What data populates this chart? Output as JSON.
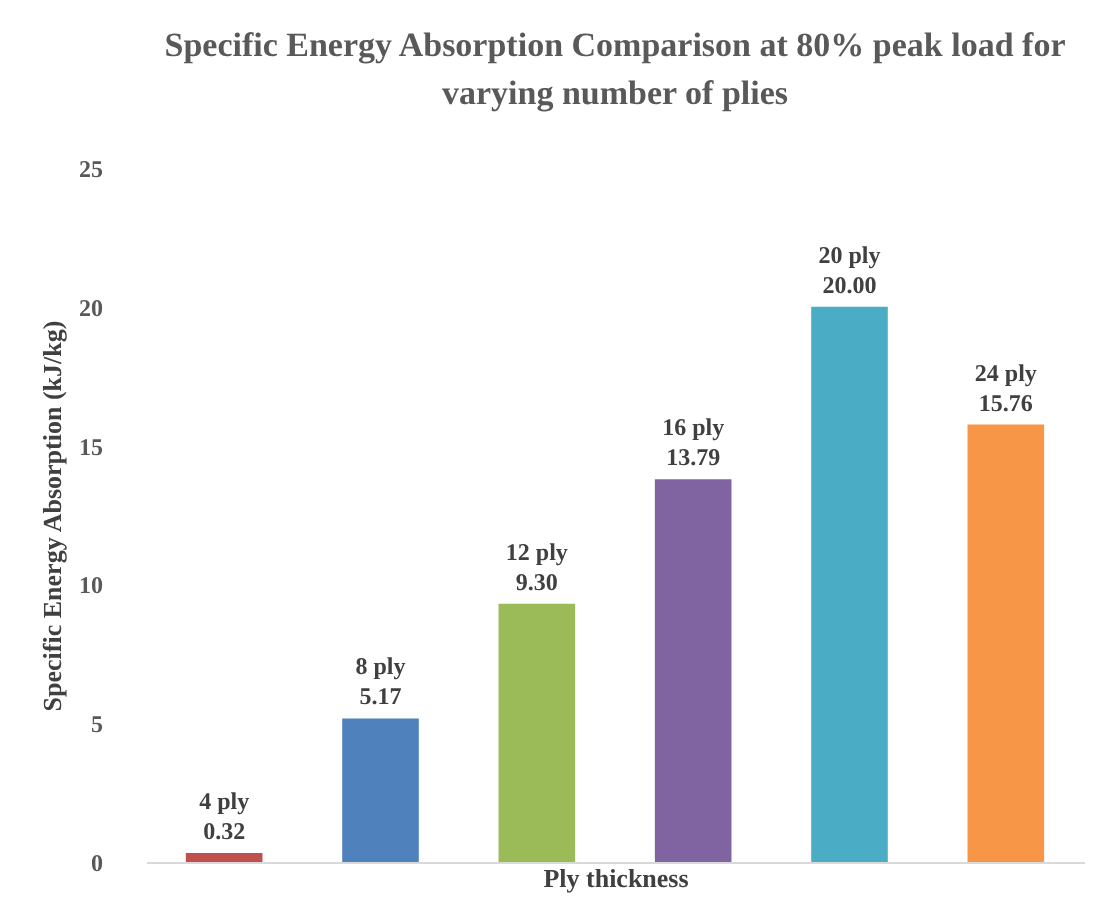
{
  "chart_data": {
    "type": "bar",
    "title": "Specific Energy Absorption Comparison at 80% peak load for varying number of plies",
    "xlabel": "Ply thickness",
    "ylabel": "Specific Energy Absorption (kJ/kg)",
    "categories": [
      "4 ply",
      "8 ply",
      "12 ply",
      "16 ply",
      "20 ply",
      "24 ply"
    ],
    "values": [
      0.32,
      5.17,
      9.3,
      13.79,
      20.0,
      15.76
    ],
    "colors": [
      "#c0504d",
      "#4f81bd",
      "#9bbb59",
      "#8064a2",
      "#4bacc6",
      "#f79646"
    ],
    "value_labels": [
      "0.32",
      "5.17",
      "9.30",
      "13.79",
      "20.00",
      "15.76"
    ],
    "ylim": [
      0,
      25
    ],
    "yticks": [
      0,
      5,
      10,
      15,
      20,
      25
    ],
    "grid": false,
    "tick_labels": "y"
  }
}
